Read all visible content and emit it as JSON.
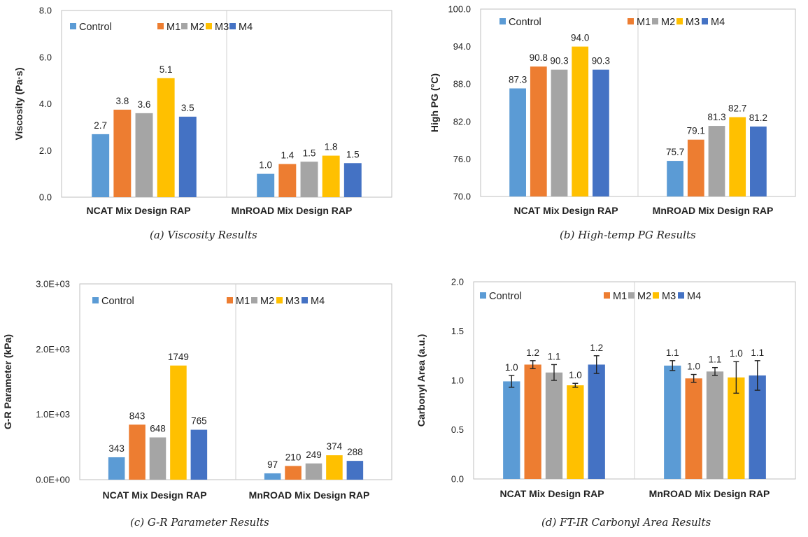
{
  "colors": {
    "Control": "#5b9bd5",
    "M1": "#ed7d31",
    "M2": "#a5a5a5",
    "M3": "#ffc000",
    "M4": "#4472c4",
    "frame": "#bfbfbf",
    "divider": "#d0d0d0"
  },
  "chart_data": [
    {
      "id": "a",
      "type": "bar",
      "caption": "(a) Viscosity Results",
      "ylabel": "Viscosity (Pa·s)",
      "xlabel": "",
      "ylim": [
        0,
        8
      ],
      "yticks": [
        "0.0",
        "2.0",
        "4.0",
        "6.0",
        "8.0"
      ],
      "categories": [
        "NCAT Mix Design RAP",
        "MnROAD Mix Design RAP"
      ],
      "grid": false,
      "legend": "top",
      "series": [
        {
          "name": "Control",
          "values": [
            2.7,
            1.0
          ],
          "labels": [
            "2.7",
            "1.0"
          ]
        },
        {
          "name": "M1",
          "values": [
            3.75,
            1.42
          ],
          "labels": [
            "3.8",
            "1.4"
          ]
        },
        {
          "name": "M2",
          "values": [
            3.6,
            1.52
          ],
          "labels": [
            "3.6",
            "1.5"
          ]
        },
        {
          "name": "M3",
          "values": [
            5.1,
            1.78
          ],
          "labels": [
            "5.1",
            "1.8"
          ]
        },
        {
          "name": "M4",
          "values": [
            3.45,
            1.46
          ],
          "labels": [
            "3.5",
            "1.5"
          ]
        }
      ]
    },
    {
      "id": "b",
      "type": "bar",
      "caption": "(b) High-temp PG Results",
      "ylabel": "High PG (°C)",
      "xlabel": "",
      "ylim": [
        70,
        100
      ],
      "yticks": [
        "70.0",
        "76.0",
        "82.0",
        "88.0",
        "94.0",
        "100.0"
      ],
      "categories": [
        "NCAT Mix Design RAP",
        "MnROAD Mix Design RAP"
      ],
      "grid": false,
      "legend": "top",
      "series": [
        {
          "name": "Control",
          "values": [
            87.3,
            75.7
          ],
          "labels": [
            "87.3",
            "75.7"
          ]
        },
        {
          "name": "M1",
          "values": [
            90.8,
            79.1
          ],
          "labels": [
            "90.8",
            "79.1"
          ]
        },
        {
          "name": "M2",
          "values": [
            90.3,
            81.3
          ],
          "labels": [
            "90.3",
            "81.3"
          ]
        },
        {
          "name": "M3",
          "values": [
            94.0,
            82.7
          ],
          "labels": [
            "94.0",
            "82.7"
          ]
        },
        {
          "name": "M4",
          "values": [
            90.3,
            81.2
          ],
          "labels": [
            "90.3",
            "81.2"
          ]
        }
      ]
    },
    {
      "id": "c",
      "type": "bar",
      "caption": "(c) G-R Parameter Results",
      "ylabel": "G-R Parameter (kPa)",
      "xlabel": "",
      "ylim": [
        0,
        3000
      ],
      "yticks": [
        "0.0E+00",
        "1.0E+03",
        "2.0E+03",
        "3.0E+03"
      ],
      "categories": [
        "NCAT Mix Design RAP",
        "MnROAD Mix Design RAP"
      ],
      "grid": false,
      "legend": "top",
      "series": [
        {
          "name": "Control",
          "values": [
            343,
            97
          ],
          "labels": [
            "343",
            "97"
          ]
        },
        {
          "name": "M1",
          "values": [
            843,
            210
          ],
          "labels": [
            "843",
            "210"
          ]
        },
        {
          "name": "M2",
          "values": [
            648,
            249
          ],
          "labels": [
            "648",
            "249"
          ]
        },
        {
          "name": "M3",
          "values": [
            1749,
            374
          ],
          "labels": [
            "1749",
            "374"
          ]
        },
        {
          "name": "M4",
          "values": [
            765,
            288
          ],
          "labels": [
            "765",
            "288"
          ]
        }
      ]
    },
    {
      "id": "d",
      "type": "bar",
      "caption": "(d) FT-IR Carbonyl Area Results",
      "ylabel": "Carbonyl Area (a.u.)",
      "xlabel": "",
      "ylim": [
        0,
        2
      ],
      "yticks": [
        "0.0",
        "0.5",
        "1.0",
        "1.5",
        "2.0"
      ],
      "categories": [
        "NCAT Mix Design RAP",
        "MnROAD Mix Design RAP"
      ],
      "grid": false,
      "legend": "top",
      "series": [
        {
          "name": "Control",
          "values": [
            0.99,
            1.15
          ],
          "labels": [
            "1.0",
            "1.1"
          ],
          "err": [
            0.06,
            0.05
          ]
        },
        {
          "name": "M1",
          "values": [
            1.16,
            1.02
          ],
          "labels": [
            "1.2",
            "1.0"
          ],
          "err": [
            0.04,
            0.04
          ]
        },
        {
          "name": "M2",
          "values": [
            1.08,
            1.09
          ],
          "labels": [
            "1.1",
            "1.1"
          ],
          "err": [
            0.08,
            0.04
          ]
        },
        {
          "name": "M3",
          "values": [
            0.95,
            1.03
          ],
          "labels": [
            "1.0",
            "1.0"
          ],
          "err": [
            0.02,
            0.16
          ]
        },
        {
          "name": "M4",
          "values": [
            1.16,
            1.05
          ],
          "labels": [
            "1.2",
            "1.1"
          ],
          "err": [
            0.09,
            0.15
          ]
        }
      ]
    }
  ]
}
